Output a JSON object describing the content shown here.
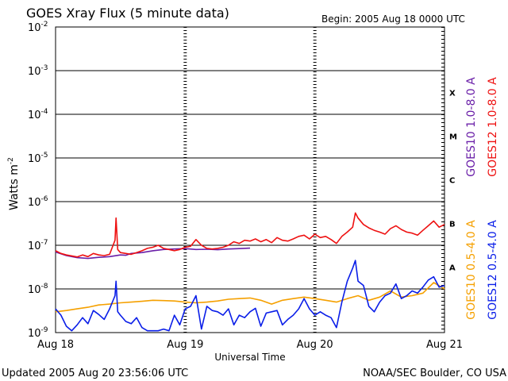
{
  "chart_data": {
    "type": "line",
    "title": "GOES Xray Flux (5 minute data)",
    "begin_label": "Begin:  2005 Aug 18 0000 UTC",
    "xlabel": "Universal Time",
    "ylabel": "Watts m",
    "ylabel_superscript": "-2",
    "y_scale": "log",
    "ylim": [
      1e-09,
      0.01
    ],
    "y_ticks": [
      {
        "exp": 10,
        "base": "10",
        "sup": "-2",
        "value": 0.01
      },
      {
        "exp": 10,
        "base": "10",
        "sup": "-3",
        "value": 0.001
      },
      {
        "exp": 10,
        "base": "10",
        "sup": "-4",
        "value": 0.0001
      },
      {
        "exp": 10,
        "base": "10",
        "sup": "-5",
        "value": 1e-05
      },
      {
        "exp": 10,
        "base": "10",
        "sup": "-6",
        "value": 1e-06
      },
      {
        "exp": 10,
        "base": "10",
        "sup": "-7",
        "value": 1e-07
      },
      {
        "exp": 10,
        "base": "10",
        "sup": "-8",
        "value": 1e-08
      },
      {
        "exp": 10,
        "base": "10",
        "sup": "-9",
        "value": 1e-09
      }
    ],
    "x_range_hours": [
      0,
      72
    ],
    "x_ticks": [
      {
        "label": "Aug 18",
        "hour": 0
      },
      {
        "label": "Aug 19",
        "hour": 24
      },
      {
        "label": "Aug 20",
        "hour": 48
      },
      {
        "label": "Aug 21",
        "hour": 72
      }
    ],
    "flare_classes": [
      {
        "label": "X",
        "lower": 0.0001
      },
      {
        "label": "M",
        "lower": 1e-05
      },
      {
        "label": "C",
        "lower": 1e-06
      },
      {
        "label": "B",
        "lower": 1e-07
      },
      {
        "label": "A",
        "lower": 1e-08
      }
    ],
    "grid": "horizontal at each decade",
    "series": [
      {
        "name": "GOES10 1.0-8.0 A",
        "color": "#6a1fa8",
        "points": [
          [
            0,
            7e-08
          ],
          [
            2,
            5.8e-08
          ],
          [
            4,
            5.2e-08
          ],
          [
            6,
            5e-08
          ],
          [
            8,
            5.3e-08
          ],
          [
            10,
            5.5e-08
          ],
          [
            12,
            6e-08
          ],
          [
            13,
            5.9e-08
          ],
          [
            14,
            6.5e-08
          ],
          [
            16,
            6.8e-08
          ],
          [
            18,
            7.5e-08
          ],
          [
            20,
            8e-08
          ],
          [
            22,
            8.2e-08
          ],
          [
            24,
            8.4e-08
          ],
          [
            26,
            8e-08
          ],
          [
            28,
            8.1e-08
          ],
          [
            30,
            7.9e-08
          ],
          [
            32,
            8.2e-08
          ],
          [
            34,
            8.4e-08
          ],
          [
            36,
            8.6e-08
          ]
        ]
      },
      {
        "name": "GOES12 1.0-8.0 A",
        "color": "#ee1111",
        "points": [
          [
            0,
            7.5e-08
          ],
          [
            1,
            6.5e-08
          ],
          [
            2,
            6e-08
          ],
          [
            3,
            5.7e-08
          ],
          [
            4,
            5.4e-08
          ],
          [
            5,
            6e-08
          ],
          [
            6,
            5.5e-08
          ],
          [
            7,
            6.5e-08
          ],
          [
            8,
            6e-08
          ],
          [
            9,
            5.8e-08
          ],
          [
            10,
            6.2e-08
          ],
          [
            11,
            1.3e-07
          ],
          [
            11.2,
            4.2e-07
          ],
          [
            11.5,
            8e-08
          ],
          [
            12,
            6.8e-08
          ],
          [
            13,
            6.5e-08
          ],
          [
            14,
            6.2e-08
          ],
          [
            15,
            6.8e-08
          ],
          [
            16,
            7.5e-08
          ],
          [
            17,
            8.5e-08
          ],
          [
            18,
            9e-08
          ],
          [
            19,
            1e-07
          ],
          [
            20,
            8.5e-08
          ],
          [
            21,
            8e-08
          ],
          [
            22,
            7.5e-08
          ],
          [
            23,
            8e-08
          ],
          [
            24,
            9e-08
          ],
          [
            25,
            9.5e-08
          ],
          [
            26,
            1.35e-07
          ],
          [
            27,
            1e-07
          ],
          [
            28,
            8.5e-08
          ],
          [
            29,
            8.2e-08
          ],
          [
            30,
            8.5e-08
          ],
          [
            31,
            9e-08
          ],
          [
            32,
            1e-07
          ],
          [
            33,
            1.2e-07
          ],
          [
            34,
            1.1e-07
          ],
          [
            35,
            1.3e-07
          ],
          [
            36,
            1.25e-07
          ],
          [
            37,
            1.4e-07
          ],
          [
            38,
            1.2e-07
          ],
          [
            39,
            1.35e-07
          ],
          [
            40,
            1.15e-07
          ],
          [
            41,
            1.5e-07
          ],
          [
            42,
            1.3e-07
          ],
          [
            43,
            1.25e-07
          ],
          [
            44,
            1.4e-07
          ],
          [
            45,
            1.6e-07
          ],
          [
            46,
            1.7e-07
          ],
          [
            47,
            1.4e-07
          ],
          [
            48,
            1.8e-07
          ],
          [
            49,
            1.5e-07
          ],
          [
            50,
            1.6e-07
          ],
          [
            51,
            1.35e-07
          ],
          [
            52,
            1.1e-07
          ],
          [
            53,
            1.6e-07
          ],
          [
            54,
            2e-07
          ],
          [
            55,
            2.6e-07
          ],
          [
            55.5,
            5.5e-07
          ],
          [
            56,
            4.2e-07
          ],
          [
            57,
            3e-07
          ],
          [
            58,
            2.5e-07
          ],
          [
            59,
            2.2e-07
          ],
          [
            60,
            2e-07
          ],
          [
            61,
            1.8e-07
          ],
          [
            62,
            2.4e-07
          ],
          [
            63,
            2.8e-07
          ],
          [
            64,
            2.3e-07
          ],
          [
            65,
            2e-07
          ],
          [
            66,
            1.9e-07
          ],
          [
            67,
            1.7e-07
          ],
          [
            68,
            2.2e-07
          ],
          [
            69,
            2.8e-07
          ],
          [
            70,
            3.6e-07
          ],
          [
            71,
            2.6e-07
          ],
          [
            72,
            3e-07
          ]
        ]
      },
      {
        "name": "GOES10 0.5-4.0 A",
        "color": "#f5a000",
        "points": [
          [
            0,
            3e-09
          ],
          [
            2,
            3.2e-09
          ],
          [
            4,
            3.5e-09
          ],
          [
            6,
            3.8e-09
          ],
          [
            8,
            4.3e-09
          ],
          [
            10,
            4.5e-09
          ],
          [
            12,
            4.8e-09
          ],
          [
            14,
            5e-09
          ],
          [
            16,
            5.2e-09
          ],
          [
            18,
            5.5e-09
          ],
          [
            20,
            5.4e-09
          ],
          [
            22,
            5.3e-09
          ],
          [
            24,
            5e-09
          ],
          [
            26,
            4.8e-09
          ],
          [
            28,
            5e-09
          ],
          [
            30,
            5.3e-09
          ],
          [
            32,
            5.8e-09
          ],
          [
            34,
            6e-09
          ],
          [
            36,
            6.2e-09
          ],
          [
            38,
            5.5e-09
          ],
          [
            40,
            4.5e-09
          ],
          [
            42,
            5.5e-09
          ],
          [
            44,
            6e-09
          ],
          [
            46,
            6.5e-09
          ],
          [
            48,
            6e-09
          ],
          [
            50,
            5.5e-09
          ],
          [
            52,
            5e-09
          ],
          [
            54,
            6e-09
          ],
          [
            56,
            7e-09
          ],
          [
            58,
            5.5e-09
          ],
          [
            60,
            6.5e-09
          ],
          [
            62,
            9e-09
          ],
          [
            64,
            6.5e-09
          ],
          [
            66,
            7e-09
          ],
          [
            68,
            8e-09
          ],
          [
            70,
            1.4e-08
          ],
          [
            72,
            1e-08
          ]
        ]
      },
      {
        "name": "GOES12 0.5-4.0 A",
        "color": "#0a1ee8",
        "points": [
          [
            0,
            3.5e-09
          ],
          [
            1,
            2.5e-09
          ],
          [
            2,
            1.4e-09
          ],
          [
            3,
            1.1e-09
          ],
          [
            4,
            1.5e-09
          ],
          [
            5,
            2.2e-09
          ],
          [
            6,
            1.6e-09
          ],
          [
            7,
            3.2e-09
          ],
          [
            8,
            2.6e-09
          ],
          [
            9,
            2e-09
          ],
          [
            10,
            3.5e-09
          ],
          [
            11,
            7e-09
          ],
          [
            11.2,
            1.5e-08
          ],
          [
            11.5,
            3e-09
          ],
          [
            12,
            2.5e-09
          ],
          [
            13,
            1.8e-09
          ],
          [
            14,
            1.6e-09
          ],
          [
            15,
            2.2e-09
          ],
          [
            16,
            1.3e-09
          ],
          [
            17,
            1.1e-09
          ],
          [
            18,
            1.1e-09
          ],
          [
            19,
            1.1e-09
          ],
          [
            20,
            1.2e-09
          ],
          [
            21,
            1.1e-09
          ],
          [
            22,
            2.5e-09
          ],
          [
            23,
            1.5e-09
          ],
          [
            24,
            3.5e-09
          ],
          [
            25,
            4e-09
          ],
          [
            26,
            7e-09
          ],
          [
            27,
            1.2e-09
          ],
          [
            28,
            4e-09
          ],
          [
            29,
            3.2e-09
          ],
          [
            30,
            3e-09
          ],
          [
            31,
            2.5e-09
          ],
          [
            32,
            3.5e-09
          ],
          [
            33,
            1.5e-09
          ],
          [
            34,
            2.5e-09
          ],
          [
            35,
            2.2e-09
          ],
          [
            36,
            3e-09
          ],
          [
            37,
            3.6e-09
          ],
          [
            38,
            1.4e-09
          ],
          [
            39,
            2.8e-09
          ],
          [
            40,
            3e-09
          ],
          [
            41,
            3.2e-09
          ],
          [
            42,
            1.5e-09
          ],
          [
            43,
            2e-09
          ],
          [
            44,
            2.5e-09
          ],
          [
            45,
            3.5e-09
          ],
          [
            46,
            6e-09
          ],
          [
            47,
            3.5e-09
          ],
          [
            48,
            2.5e-09
          ],
          [
            49,
            3e-09
          ],
          [
            50,
            2.5e-09
          ],
          [
            51,
            2.2e-09
          ],
          [
            52,
            1.3e-09
          ],
          [
            53,
            5e-09
          ],
          [
            54,
            1.5e-08
          ],
          [
            55,
            3e-08
          ],
          [
            55.5,
            4.5e-08
          ],
          [
            56,
            1.5e-08
          ],
          [
            57,
            1.2e-08
          ],
          [
            58,
            4e-09
          ],
          [
            59,
            3e-09
          ],
          [
            60,
            5e-09
          ],
          [
            61,
            7e-09
          ],
          [
            62,
            8e-09
          ],
          [
            63,
            1.3e-08
          ],
          [
            64,
            6e-09
          ],
          [
            65,
            7e-09
          ],
          [
            66,
            9e-09
          ],
          [
            67,
            8e-09
          ],
          [
            68,
            1.1e-08
          ],
          [
            69,
            1.6e-08
          ],
          [
            70,
            1.9e-08
          ],
          [
            71,
            1.1e-08
          ],
          [
            72,
            1.2e-08
          ]
        ]
      }
    ],
    "footer_left": "Updated 2005 Aug 20 23:56:06 UTC",
    "footer_right": "NOAA/SEC Boulder, CO USA"
  }
}
